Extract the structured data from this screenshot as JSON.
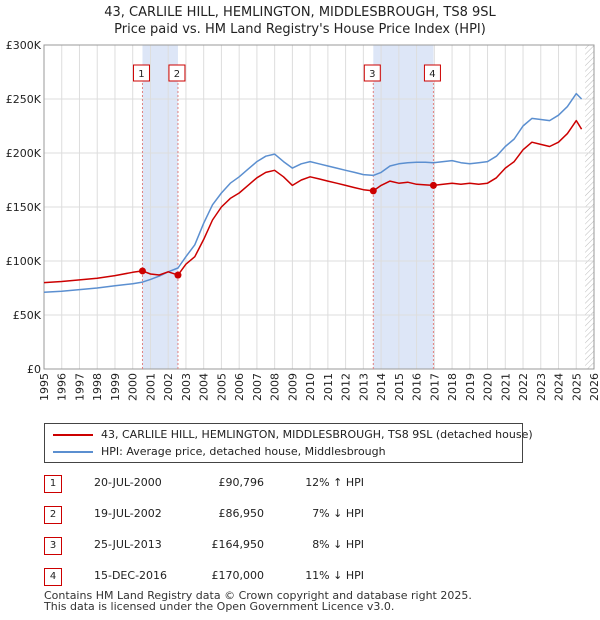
{
  "title_line1": "43, CARLILE HILL, HEMLINGTON, MIDDLESBROUGH, TS8 9SL",
  "title_line2": "Price paid vs. HM Land Registry's House Price Index (HPI)",
  "chart_data": {
    "type": "line",
    "x_range": [
      1995,
      2026
    ],
    "y_range": [
      0,
      300000
    ],
    "y_ticks": [
      {
        "value": 0,
        "label": "£0"
      },
      {
        "value": 50000,
        "label": "£50K"
      },
      {
        "value": 100000,
        "label": "£100K"
      },
      {
        "value": 150000,
        "label": "£150K"
      },
      {
        "value": 200000,
        "label": "£200K"
      },
      {
        "value": 250000,
        "label": "£250K"
      },
      {
        "value": 300000,
        "label": "£300K"
      }
    ],
    "x_ticks": [
      "1995",
      "1996",
      "1997",
      "1998",
      "1999",
      "2000",
      "2001",
      "2002",
      "2003",
      "2004",
      "2005",
      "2006",
      "2007",
      "2008",
      "2009",
      "2010",
      "2011",
      "2012",
      "2013",
      "2014",
      "2015",
      "2016",
      "2017",
      "2018",
      "2019",
      "2020",
      "2021",
      "2022",
      "2023",
      "2024",
      "2025",
      "2026"
    ],
    "grid": true,
    "series": [
      {
        "name": "43, CARLILE HILL, HEMLINGTON, MIDDLESBROUGH, TS8 9SL (detached house)",
        "color": "#cc0000",
        "points": [
          [
            1995.0,
            80000
          ],
          [
            1996.0,
            81000
          ],
          [
            1997.0,
            82500
          ],
          [
            1998.0,
            84000
          ],
          [
            1999.0,
            86500
          ],
          [
            2000.0,
            89500
          ],
          [
            2000.55,
            90796
          ],
          [
            2001.0,
            88000
          ],
          [
            2001.5,
            87000
          ],
          [
            2002.0,
            90000
          ],
          [
            2002.55,
            86950
          ],
          [
            2003.0,
            97000
          ],
          [
            2003.5,
            104000
          ],
          [
            2004.0,
            120000
          ],
          [
            2004.5,
            138000
          ],
          [
            2005.0,
            150000
          ],
          [
            2005.5,
            158000
          ],
          [
            2006.0,
            163000
          ],
          [
            2006.5,
            170000
          ],
          [
            2007.0,
            177000
          ],
          [
            2007.5,
            182000
          ],
          [
            2008.0,
            184000
          ],
          [
            2008.5,
            178000
          ],
          [
            2009.0,
            170000
          ],
          [
            2009.5,
            175000
          ],
          [
            2010.0,
            178000
          ],
          [
            2010.5,
            176000
          ],
          [
            2011.0,
            174000
          ],
          [
            2011.5,
            172000
          ],
          [
            2012.0,
            170000
          ],
          [
            2012.5,
            168000
          ],
          [
            2013.0,
            166000
          ],
          [
            2013.56,
            164950
          ],
          [
            2014.0,
            170000
          ],
          [
            2014.5,
            174000
          ],
          [
            2015.0,
            172000
          ],
          [
            2015.5,
            173000
          ],
          [
            2016.0,
            171000
          ],
          [
            2016.5,
            170500
          ],
          [
            2016.95,
            170000
          ],
          [
            2017.5,
            171000
          ],
          [
            2018.0,
            172000
          ],
          [
            2018.5,
            171000
          ],
          [
            2019.0,
            172000
          ],
          [
            2019.5,
            171000
          ],
          [
            2020.0,
            172000
          ],
          [
            2020.5,
            177000
          ],
          [
            2021.0,
            186000
          ],
          [
            2021.5,
            192000
          ],
          [
            2022.0,
            203000
          ],
          [
            2022.5,
            210000
          ],
          [
            2023.0,
            208000
          ],
          [
            2023.5,
            206000
          ],
          [
            2024.0,
            210000
          ],
          [
            2024.5,
            218000
          ],
          [
            2025.0,
            230000
          ],
          [
            2025.3,
            222000
          ]
        ]
      },
      {
        "name": "HPI: Average price, detached house, Middlesbrough",
        "color": "#5b8fd0",
        "points": [
          [
            1995.0,
            71000
          ],
          [
            1996.0,
            72000
          ],
          [
            1997.0,
            73500
          ],
          [
            1998.0,
            75000
          ],
          [
            1999.0,
            77000
          ],
          [
            2000.0,
            79000
          ],
          [
            2000.55,
            80500
          ],
          [
            2001.0,
            83000
          ],
          [
            2001.5,
            86000
          ],
          [
            2002.0,
            90000
          ],
          [
            2002.55,
            93500
          ],
          [
            2003.0,
            104000
          ],
          [
            2003.5,
            115000
          ],
          [
            2004.0,
            135000
          ],
          [
            2004.5,
            152000
          ],
          [
            2005.0,
            163000
          ],
          [
            2005.5,
            172000
          ],
          [
            2006.0,
            178000
          ],
          [
            2006.5,
            185000
          ],
          [
            2007.0,
            192000
          ],
          [
            2007.5,
            197000
          ],
          [
            2008.0,
            199000
          ],
          [
            2008.5,
            192000
          ],
          [
            2009.0,
            186000
          ],
          [
            2009.5,
            190000
          ],
          [
            2010.0,
            192000
          ],
          [
            2010.5,
            190000
          ],
          [
            2011.0,
            188000
          ],
          [
            2011.5,
            186000
          ],
          [
            2012.0,
            184000
          ],
          [
            2012.5,
            182000
          ],
          [
            2013.0,
            180000
          ],
          [
            2013.56,
            179300
          ],
          [
            2014.0,
            182000
          ],
          [
            2014.5,
            188000
          ],
          [
            2015.0,
            190000
          ],
          [
            2015.5,
            191000
          ],
          [
            2016.0,
            191500
          ],
          [
            2016.5,
            191500
          ],
          [
            2016.95,
            191000
          ],
          [
            2017.5,
            192000
          ],
          [
            2018.0,
            193000
          ],
          [
            2018.5,
            191000
          ],
          [
            2019.0,
            190000
          ],
          [
            2019.5,
            191000
          ],
          [
            2020.0,
            192000
          ],
          [
            2020.5,
            197000
          ],
          [
            2021.0,
            206000
          ],
          [
            2021.5,
            213000
          ],
          [
            2022.0,
            225000
          ],
          [
            2022.5,
            232000
          ],
          [
            2023.0,
            231000
          ],
          [
            2023.5,
            230000
          ],
          [
            2024.0,
            235000
          ],
          [
            2024.5,
            243000
          ],
          [
            2025.0,
            255000
          ],
          [
            2025.3,
            250000
          ]
        ]
      }
    ],
    "sales": [
      {
        "id": "1",
        "year": 2000.55,
        "price": 90796
      },
      {
        "id": "2",
        "year": 2002.55,
        "price": 86950
      },
      {
        "id": "3",
        "year": 2013.56,
        "price": 164950
      },
      {
        "id": "4",
        "year": 2016.95,
        "price": 170000
      }
    ],
    "shaded_ranges": [
      [
        2000.55,
        2002.55
      ],
      [
        2013.56,
        2016.95
      ]
    ],
    "future_hatch_from": 2025.5
  },
  "legend": {
    "property": "43, CARLILE HILL, HEMLINGTON, MIDDLESBROUGH, TS8 9SL (detached house)",
    "hpi": "HPI: Average price, detached house, Middlesbrough"
  },
  "sales_table": [
    {
      "num": "1",
      "date": "20-JUL-2000",
      "price": "£90,796",
      "hpi": "12% ↑ HPI"
    },
    {
      "num": "2",
      "date": "19-JUL-2002",
      "price": "£86,950",
      "hpi": "7% ↓ HPI"
    },
    {
      "num": "3",
      "date": "25-JUL-2013",
      "price": "£164,950",
      "hpi": "8% ↓ HPI"
    },
    {
      "num": "4",
      "date": "15-DEC-2016",
      "price": "£170,000",
      "hpi": "11% ↓ HPI"
    }
  ],
  "footer": {
    "line1": "Contains HM Land Registry data © Crown copyright and database right 2025.",
    "line2": "This data is licensed under the Open Government Licence v3.0."
  },
  "colors": {
    "property_line": "#cc0000",
    "hpi_line": "#5b8fd0",
    "shade": "#dde6f7",
    "marker_border": "#cc0000",
    "grid": "#dddddd"
  }
}
